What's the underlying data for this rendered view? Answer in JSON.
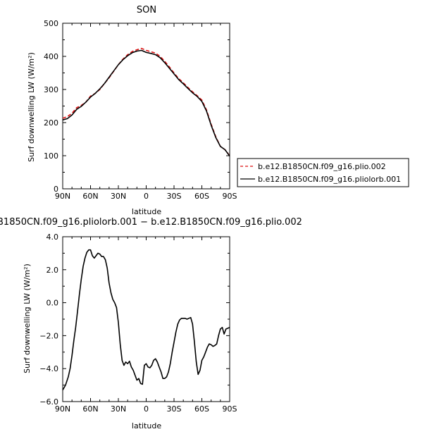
{
  "chart_data": [
    {
      "type": "line",
      "title": "SON",
      "xlabel": "latitude",
      "ylabel": "Surf downwelling LW (W/m²)",
      "xlim": [
        90,
        -90
      ],
      "ylim": [
        0,
        500
      ],
      "x_ticks": [
        90,
        60,
        30,
        0,
        -30,
        -60,
        -90
      ],
      "x_tick_labels": [
        "90N",
        "60N",
        "30N",
        "0",
        "30S",
        "60S",
        "90S"
      ],
      "y_ticks": [
        0,
        100,
        200,
        300,
        400,
        500
      ],
      "y_tick_labels": [
        "0",
        "100",
        "200",
        "300",
        "400",
        "500"
      ],
      "legend_position": "right",
      "series": [
        {
          "name": "b.e12.B1850CN.f09_g16.plio.002",
          "color": "#dd1111",
          "style": "dashed",
          "x": [
            90,
            85,
            80,
            75,
            70,
            65,
            60,
            55,
            50,
            45,
            40,
            35,
            30,
            25,
            20,
            15,
            10,
            5,
            0,
            -5,
            -10,
            -15,
            -20,
            -25,
            -30,
            -35,
            -40,
            -45,
            -50,
            -55,
            -60,
            -65,
            -70,
            -75,
            -80,
            -85,
            -90
          ],
          "y": [
            213,
            218,
            228,
            245,
            252,
            262,
            280,
            288,
            300,
            318,
            335,
            355,
            375,
            392,
            405,
            415,
            420,
            424,
            418,
            414,
            410,
            400,
            385,
            368,
            350,
            333,
            320,
            306,
            293,
            281,
            268,
            238,
            195,
            157,
            128,
            118,
            100
          ]
        },
        {
          "name": "b.e12.B1850CN.f09_g16.pliolorb.001",
          "color": "#000000",
          "style": "solid",
          "x": [
            90,
            85,
            80,
            75,
            70,
            65,
            60,
            55,
            50,
            45,
            40,
            35,
            30,
            25,
            20,
            15,
            10,
            5,
            0,
            -5,
            -10,
            -15,
            -20,
            -25,
            -30,
            -35,
            -40,
            -45,
            -50,
            -55,
            -60,
            -65,
            -70,
            -75,
            -80,
            -85,
            -90
          ],
          "y": [
            208,
            212,
            223,
            240,
            249,
            262,
            277,
            288,
            302,
            318,
            337,
            356,
            375,
            390,
            402,
            411,
            416,
            418,
            412,
            409,
            405,
            396,
            381,
            364,
            347,
            330,
            317,
            303,
            290,
            279,
            264,
            235,
            192,
            155,
            128,
            118,
            99
          ]
        }
      ]
    },
    {
      "type": "line",
      "title": "B1850CN.f09_g16.pliolorb.001 − b.e12.B1850CN.f09_g16.plio.002",
      "xlabel": "latitude",
      "ylabel": "Surf downwelling LW (W/m²)",
      "xlim": [
        90,
        -90
      ],
      "ylim": [
        -6,
        4
      ],
      "x_ticks": [
        90,
        60,
        30,
        0,
        -30,
        -60,
        -90
      ],
      "x_tick_labels": [
        "90N",
        "60N",
        "30N",
        "0",
        "30S",
        "60S",
        "90S"
      ],
      "y_ticks": [
        -6,
        -4,
        -2,
        0,
        2,
        4
      ],
      "y_tick_labels": [
        "−6.0",
        "−4.0",
        "−2.0",
        "0.0",
        "2.0",
        "4.0"
      ],
      "series": [
        {
          "color": "#000000",
          "x": [
            90,
            87,
            84,
            82,
            80,
            78,
            76,
            74,
            72,
            70,
            68,
            66,
            64,
            62,
            60,
            58,
            56,
            54,
            52,
            50,
            48,
            46,
            44,
            42,
            40,
            38,
            36,
            34,
            32,
            30,
            28,
            26,
            24,
            22,
            20,
            18,
            16,
            14,
            12,
            10,
            8,
            6,
            4,
            2,
            0,
            -2,
            -4,
            -6,
            -8,
            -10,
            -12,
            -14,
            -16,
            -18,
            -20,
            -22,
            -24,
            -26,
            -28,
            -30,
            -32,
            -34,
            -36,
            -38,
            -40,
            -42,
            -44,
            -46,
            -48,
            -50,
            -52,
            -54,
            -56,
            -58,
            -60,
            -62,
            -64,
            -66,
            -68,
            -70,
            -72,
            -74,
            -76,
            -78,
            -80,
            -82,
            -84,
            -86,
            -88,
            -90
          ],
          "y": [
            -5.3,
            -5.0,
            -4.5,
            -4.0,
            -3.2,
            -2.3,
            -1.5,
            -0.5,
            0.5,
            1.4,
            2.2,
            2.7,
            3.05,
            3.2,
            3.2,
            2.85,
            2.7,
            2.85,
            3.0,
            2.95,
            2.8,
            2.8,
            2.6,
            2.1,
            1.2,
            0.6,
            0.2,
            0.0,
            -0.3,
            -1.2,
            -2.5,
            -3.5,
            -3.8,
            -3.6,
            -3.7,
            -3.55,
            -3.9,
            -4.1,
            -4.4,
            -4.7,
            -4.6,
            -4.9,
            -4.95,
            -3.8,
            -3.7,
            -3.9,
            -3.95,
            -3.8,
            -3.5,
            -3.4,
            -3.6,
            -3.9,
            -4.2,
            -4.6,
            -4.6,
            -4.5,
            -4.2,
            -3.7,
            -3.0,
            -2.4,
            -1.8,
            -1.3,
            -1.05,
            -0.95,
            -0.95,
            -0.95,
            -1.0,
            -0.95,
            -0.9,
            -1.3,
            -2.4,
            -3.6,
            -4.35,
            -4.1,
            -3.5,
            -3.3,
            -3.0,
            -2.7,
            -2.5,
            -2.55,
            -2.65,
            -2.6,
            -2.5,
            -2.0,
            -1.6,
            -1.5,
            -1.9,
            -1.6,
            -1.55,
            -1.5
          ]
        }
      ]
    }
  ]
}
